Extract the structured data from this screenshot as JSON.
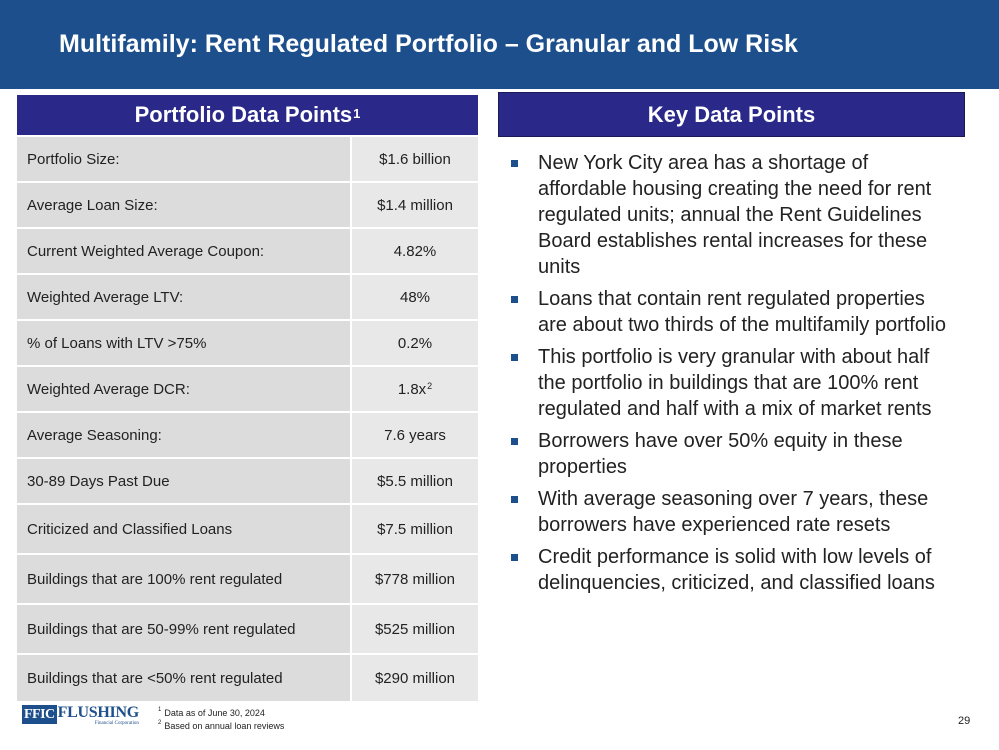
{
  "slide": {
    "title": "Multifamily: Rent Regulated Portfolio – Granular and Low Risk",
    "page_number": "29"
  },
  "portfolio": {
    "header": "Portfolio Data Points",
    "header_sup": "1",
    "rows": [
      {
        "label": "Portfolio Size:",
        "value": "$1.6 billion"
      },
      {
        "label": "Average Loan Size:",
        "value": "$1.4 million"
      },
      {
        "label": "Current Weighted Average Coupon:",
        "value": "4.82%"
      },
      {
        "label": "Weighted Average LTV:",
        "value": "48%"
      },
      {
        "label": "% of Loans with LTV >75%",
        "value": "0.2%"
      },
      {
        "label": "Weighted Average DCR:",
        "value": "1.8x",
        "value_sup": "2"
      },
      {
        "label": "Average Seasoning:",
        "value": "7.6 years"
      },
      {
        "label": "30-89 Days Past Due",
        "value": "$5.5 million"
      },
      {
        "label": "Criticized and Classified Loans",
        "value": "$7.5 million"
      },
      {
        "label": "Buildings that are 100% rent regulated",
        "value": "$778 million"
      },
      {
        "label": "Buildings that are 50-99% rent regulated",
        "value": "$525 million"
      },
      {
        "label": "Buildings that are <50% rent regulated",
        "value": "$290 million"
      }
    ]
  },
  "key_points": {
    "header": "Key Data Points",
    "bullets": [
      "New York City area has a shortage of affordable housing creating the need for rent regulated units; annual the Rent Guidelines Board establishes rental increases for these units",
      "Loans that contain rent regulated properties are about two thirds of the multifamily portfolio",
      "This portfolio is very granular with about half the portfolio in buildings that are 100% rent regulated and half with a mix of market rents",
      "Borrowers have over 50% equity in these properties",
      "With average seasoning over 7 years, these borrowers have experienced rate resets",
      "Credit performance is solid with low levels of delinquencies, criticized, and classified loans"
    ]
  },
  "logo": {
    "ffic": "FFIC",
    "name": "FLUSHING",
    "sub": "Financial Corporation"
  },
  "footnotes": [
    {
      "mark": "1",
      "text": "Data as of June 30, 2024"
    },
    {
      "mark": "2",
      "text": "Based on annual loan reviews"
    }
  ],
  "colors": {
    "title_bar": "#1d4f8c",
    "header_bg": "#2a2889",
    "label_cell": "#dcdcdc",
    "value_cell": "#e8e8e8"
  }
}
